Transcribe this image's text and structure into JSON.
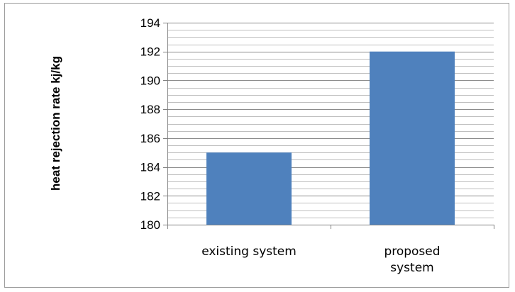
{
  "chart_data": {
    "type": "bar",
    "categories": [
      [
        "existing system"
      ],
      [
        "proposed",
        "system"
      ]
    ],
    "values": [
      185,
      192
    ],
    "title": "",
    "xlabel": "",
    "ylabel": "heat rejection rate kj/kg",
    "ylim": [
      180,
      194
    ],
    "yticks": [
      180,
      182,
      184,
      186,
      188,
      190,
      192,
      194
    ],
    "minor_grid_step": 0.5,
    "grid": true,
    "legend": "none",
    "colors": {
      "bar": "#4f81bd",
      "major_grid": "#8c8c8c",
      "minor_grid": "#bfbfbf",
      "axis": "#808080"
    }
  }
}
